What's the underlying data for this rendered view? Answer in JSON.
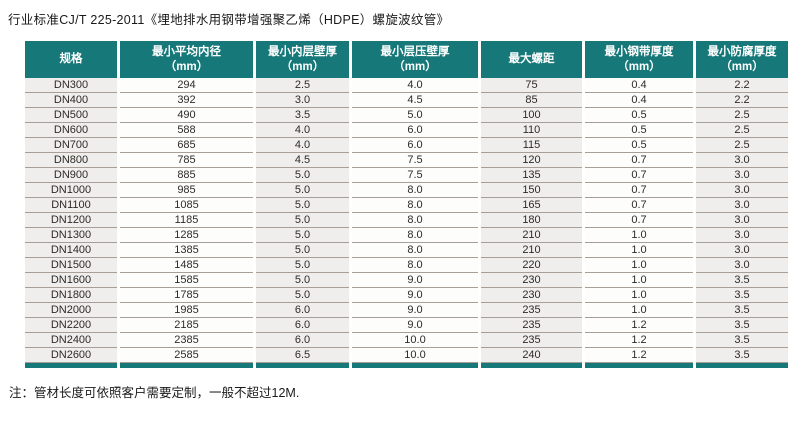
{
  "title": "行业标准CJ/T 225-2011《埋地排水用钢带增强聚乙烯（HDPE）螺旋波纹管》",
  "note": "注：管材长度可依照客户需要定制，一般不超过12M.",
  "colors": {
    "header_bg": "#177879",
    "shade_col_bg": "#f0eeec",
    "plain_col_bg": "#fdfdfc",
    "row_line": "#a69e97"
  },
  "table": {
    "columns": [
      {
        "label": "规格",
        "unit": ""
      },
      {
        "label": "最小平均内径",
        "unit": "（mm）"
      },
      {
        "label": "最小内层壁厚",
        "unit": "（mm）"
      },
      {
        "label": "最小层压壁厚",
        "unit": "（mm）"
      },
      {
        "label": "最大螺距",
        "unit": ""
      },
      {
        "label": "最小钢带厚度",
        "unit": "（mm）"
      },
      {
        "label": "最小防腐厚度",
        "unit": "（mm）"
      }
    ],
    "rows": [
      [
        "DN300",
        "294",
        "2.5",
        "4.0",
        "75",
        "0.4",
        "2.2"
      ],
      [
        "DN400",
        "392",
        "3.0",
        "4.5",
        "85",
        "0.4",
        "2.2"
      ],
      [
        "DN500",
        "490",
        "3.5",
        "5.0",
        "100",
        "0.5",
        "2.5"
      ],
      [
        "DN600",
        "588",
        "4.0",
        "6.0",
        "110",
        "0.5",
        "2.5"
      ],
      [
        "DN700",
        "685",
        "4.0",
        "6.0",
        "115",
        "0.5",
        "2.5"
      ],
      [
        "DN800",
        "785",
        "4.5",
        "7.5",
        "120",
        "0.7",
        "3.0"
      ],
      [
        "DN900",
        "885",
        "5.0",
        "7.5",
        "135",
        "0.7",
        "3.0"
      ],
      [
        "DN1000",
        "985",
        "5.0",
        "8.0",
        "150",
        "0.7",
        "3.0"
      ],
      [
        "DN1100",
        "1085",
        "5.0",
        "8.0",
        "165",
        "0.7",
        "3.0"
      ],
      [
        "DN1200",
        "1185",
        "5.0",
        "8.0",
        "180",
        "0.7",
        "3.0"
      ],
      [
        "DN1300",
        "1285",
        "5.0",
        "8.0",
        "210",
        "1.0",
        "3.0"
      ],
      [
        "DN1400",
        "1385",
        "5.0",
        "8.0",
        "210",
        "1.0",
        "3.0"
      ],
      [
        "DN1500",
        "1485",
        "5.0",
        "8.0",
        "220",
        "1.0",
        "3.0"
      ],
      [
        "DN1600",
        "1585",
        "5.0",
        "9.0",
        "230",
        "1.0",
        "3.5"
      ],
      [
        "DN1800",
        "1785",
        "5.0",
        "9.0",
        "230",
        "1.0",
        "3.5"
      ],
      [
        "DN2000",
        "1985",
        "6.0",
        "9.0",
        "235",
        "1.0",
        "3.5"
      ],
      [
        "DN2200",
        "2185",
        "6.0",
        "9.0",
        "235",
        "1.2",
        "3.5"
      ],
      [
        "DN2400",
        "2385",
        "6.0",
        "10.0",
        "235",
        "1.2",
        "3.5"
      ],
      [
        "DN2600",
        "2585",
        "6.5",
        "10.0",
        "240",
        "1.2",
        "3.5"
      ]
    ]
  }
}
